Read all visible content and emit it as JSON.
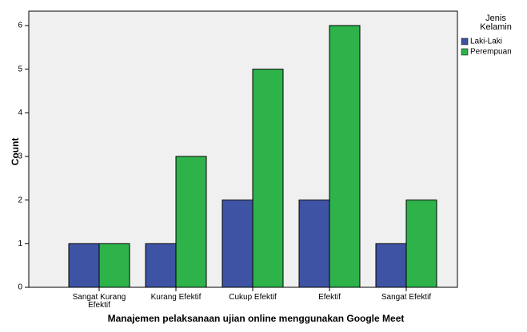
{
  "chart_data": {
    "type": "bar",
    "categories": [
      "Sangat Kurang Efektif",
      "Kurang Efektif",
      "Cukup Efektif",
      "Efektif",
      "Sangat Efektif"
    ],
    "series": [
      {
        "name": "Laki-Laki",
        "color": "#3e53a4",
        "values": [
          1,
          1,
          2,
          2,
          1
        ]
      },
      {
        "name": "Perempuan",
        "color": "#2db34a",
        "values": [
          1,
          3,
          5,
          6,
          2
        ]
      }
    ],
    "ylim": [
      0,
      6.33
    ],
    "yticks": [
      0,
      1,
      2,
      3,
      4,
      5,
      6
    ],
    "y_label": "Count",
    "x_label": "Manajemen pelaksanaan ujian online menggunakan Google Meet",
    "legend_title": "Jenis Kelamin",
    "legend": "right"
  }
}
